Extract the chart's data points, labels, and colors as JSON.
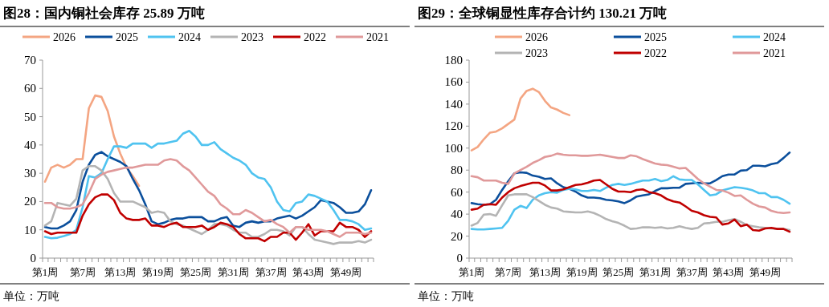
{
  "chart_data": [
    {
      "type": "line",
      "title": "图28：国内铜社会库存 25.89 万吨",
      "annotations": [
        "单位：万吨"
      ],
      "legend": "top",
      "grid": false,
      "ylim": [
        0,
        70
      ],
      "yticks": [
        0,
        10,
        20,
        30,
        40,
        50,
        60,
        70
      ],
      "categories": [
        "第1周",
        null,
        null,
        null,
        null,
        null,
        "第7周",
        null,
        null,
        null,
        null,
        null,
        "第13周",
        null,
        null,
        null,
        null,
        null,
        "第19周",
        null,
        null,
        null,
        null,
        null,
        "第25周",
        null,
        null,
        null,
        null,
        null,
        "第31周",
        null,
        null,
        null,
        null,
        null,
        "第37周",
        null,
        null,
        null,
        null,
        null,
        "第43周",
        null,
        null,
        null,
        null,
        null,
        "第49周",
        null,
        null,
        null,
        null
      ],
      "series": [
        {
          "name": "2026",
          "color": "#f4a582",
          "values": [
            27,
            32,
            33,
            32,
            33,
            35,
            35,
            53,
            57.5,
            57,
            52,
            43,
            37,
            32,
            29,
            25.5,
            null,
            null,
            null,
            null,
            null,
            null,
            null,
            null,
            null,
            null,
            null,
            null,
            null,
            null,
            null,
            null,
            null,
            null,
            null,
            null,
            null,
            null,
            null,
            null,
            null,
            null,
            null,
            null,
            null,
            null,
            null,
            null,
            null,
            null,
            null,
            null,
            null
          ]
        },
        {
          "name": "2025",
          "color": "#0b4f9c",
          "values": [
            11,
            10.5,
            10.5,
            11.5,
            13,
            17,
            27,
            33,
            36.5,
            37.5,
            36,
            35,
            34,
            32.5,
            28,
            24,
            19,
            13,
            12,
            12.5,
            13.5,
            14,
            14,
            14.5,
            14.5,
            14.5,
            13,
            13,
            14,
            14.5,
            11.5,
            11,
            12.5,
            13,
            12.5,
            13,
            13,
            14,
            14.5,
            15,
            14,
            15,
            16.5,
            18,
            20.5,
            20,
            19.5,
            18,
            16,
            16,
            16.5,
            19,
            24
          ]
        },
        {
          "name": "2024",
          "color": "#4fc3f0",
          "values": [
            7.5,
            7,
            7.2,
            7.8,
            8.5,
            10,
            18,
            29,
            28.5,
            30,
            35,
            39.5,
            39.5,
            39,
            40.5,
            40.5,
            40.5,
            39,
            40.5,
            40.5,
            41,
            41.5,
            44,
            45,
            43,
            40,
            40,
            41,
            38.5,
            37,
            35.5,
            34.5,
            33,
            30,
            28.5,
            28,
            25,
            20,
            17,
            16.5,
            19.5,
            20,
            22.5,
            22,
            21,
            20,
            17,
            13.5,
            13.5,
            13,
            12,
            10,
            10.5
          ]
        },
        {
          "name": "2023",
          "color": "#b4b4b4",
          "values": [
            11.5,
            13,
            19.5,
            19,
            18.5,
            21,
            31,
            32.5,
            32.5,
            31,
            28,
            23,
            20,
            20,
            20,
            19,
            18,
            16,
            16.5,
            16,
            13,
            12,
            11.5,
            10.5,
            9.5,
            8.5,
            10,
            12,
            12,
            11.5,
            10,
            9,
            9,
            7.5,
            7.5,
            8.5,
            10,
            10,
            9.5,
            8,
            11,
            11,
            8.5,
            6.5,
            6,
            5.5,
            5,
            5.5,
            5.5,
            5.5,
            6,
            5.5,
            6.5
          ]
        },
        {
          "name": "2022",
          "color": "#c00000",
          "values": [
            9.5,
            8.5,
            9,
            9,
            9,
            9,
            15,
            19,
            21.5,
            22.5,
            22.5,
            20.5,
            16,
            14,
            13.5,
            13.5,
            14,
            11.5,
            11.5,
            11,
            12,
            12.5,
            11,
            11,
            11,
            11.5,
            10,
            11,
            12.5,
            12,
            11,
            8.5,
            7,
            7,
            7,
            6,
            7.5,
            7.5,
            9,
            9,
            6.5,
            9,
            12,
            8,
            9.5,
            9.5,
            9.5,
            12.5,
            11,
            11,
            10,
            7.5,
            9.5
          ]
        },
        {
          "name": "2021",
          "color": "#e0999a",
          "values": [
            19.5,
            19.5,
            18,
            17.5,
            17.5,
            18,
            19,
            23,
            28,
            29.5,
            30.5,
            31,
            31.5,
            32,
            32,
            32.5,
            33,
            33,
            33,
            34.5,
            35,
            34.5,
            32.5,
            31,
            28.5,
            26,
            23.5,
            22,
            19,
            17.5,
            15.5,
            15.5,
            17,
            16,
            14.5,
            13,
            13.5,
            12,
            11,
            9,
            11,
            11,
            10,
            10,
            10,
            9.5,
            8.5,
            7.5,
            9,
            9,
            9,
            8.5,
            9
          ]
        }
      ]
    },
    {
      "type": "line",
      "title": "图29：全球铜显性库存合计约 130.21 万吨",
      "annotations": [
        "单位：万吨"
      ],
      "legend": "top",
      "grid": false,
      "ylim": [
        0,
        180
      ],
      "yticks": [
        0,
        20,
        40,
        60,
        80,
        100,
        120,
        140,
        160,
        180
      ],
      "categories": [
        "第1周",
        null,
        null,
        null,
        null,
        null,
        "第7周",
        null,
        null,
        null,
        null,
        null,
        "第13周",
        null,
        null,
        null,
        null,
        null,
        "第19周",
        null,
        null,
        null,
        null,
        null,
        "第25周",
        null,
        null,
        null,
        null,
        null,
        "第31周",
        null,
        null,
        null,
        null,
        null,
        "第37周",
        null,
        null,
        null,
        null,
        null,
        "第43周",
        null,
        null,
        null,
        null,
        null,
        "第49周",
        null,
        null,
        null,
        null
      ],
      "series": [
        {
          "name": "2026",
          "color": "#f4a582",
          "values": [
            98,
            101,
            108,
            114,
            115,
            118,
            122,
            126,
            145,
            152,
            154,
            151,
            143,
            137,
            135,
            132,
            130,
            null,
            null,
            null,
            null,
            null,
            null,
            null,
            null,
            null,
            null,
            null,
            null,
            null,
            null,
            null,
            null,
            null,
            null,
            null,
            null,
            null,
            null,
            null,
            null,
            null,
            null,
            null,
            null,
            null,
            null,
            null,
            null,
            null,
            null,
            null,
            null
          ]
        },
        {
          "name": "2025",
          "color": "#0b4f9c",
          "values": [
            50,
            49,
            48.5,
            49,
            53,
            62,
            70,
            77,
            78,
            77.5,
            75,
            74,
            72,
            72.5,
            68,
            64.5,
            63,
            60.5,
            57,
            55,
            55,
            54.5,
            53,
            52.5,
            51.5,
            50,
            52.5,
            56,
            57,
            58,
            61,
            63.5,
            63.5,
            64,
            64,
            67.5,
            68,
            68.5,
            68,
            68,
            71,
            74.5,
            76,
            76,
            79.5,
            80,
            84,
            84,
            83.5,
            85.5,
            86.5,
            91,
            96
          ]
        },
        {
          "name": "2024",
          "color": "#4fc3f0",
          "values": [
            26.5,
            26,
            26,
            26.5,
            27,
            27.5,
            34,
            44,
            47.5,
            45.5,
            53,
            57,
            59,
            60,
            59.5,
            62,
            63,
            62.5,
            61,
            61,
            62,
            61,
            64,
            66.5,
            67.5,
            66.5,
            67.5,
            69,
            70.5,
            70.5,
            72,
            70,
            71,
            74.5,
            71.5,
            71,
            71,
            67,
            62,
            57,
            58,
            61.5,
            63,
            64.5,
            64,
            63,
            61.5,
            59,
            59,
            55.5,
            55.5,
            53,
            49.5
          ]
        },
        {
          "name": "2023",
          "color": "#b4b4b4",
          "values": [
            29.5,
            32,
            39.5,
            40,
            38.5,
            48,
            57,
            58,
            58,
            58,
            55.5,
            52,
            48.5,
            46,
            45,
            42.5,
            42,
            41.5,
            41.5,
            42.5,
            41,
            38.5,
            35.5,
            33.5,
            32,
            29.5,
            26.5,
            27,
            28,
            28,
            27.5,
            28,
            27,
            27.5,
            29,
            27.5,
            26.5,
            27.5,
            31.5,
            32,
            33,
            33,
            34.5,
            35.5,
            33,
            30,
            29,
            28,
            27.5,
            27,
            26.5,
            26.5,
            25.5
          ]
        },
        {
          "name": "2022",
          "color": "#c00000",
          "values": [
            44,
            45,
            48.5,
            49,
            48.5,
            55,
            60,
            63.5,
            65.5,
            67,
            68.5,
            68.5,
            66,
            61.5,
            61.5,
            62.5,
            64.5,
            66.5,
            67,
            68.5,
            70.5,
            71,
            67,
            63,
            60.5,
            60.5,
            60,
            62,
            62.5,
            60,
            59,
            57,
            53.5,
            51.5,
            50.5,
            47,
            43,
            41.5,
            39,
            37.5,
            37,
            30.5,
            31.5,
            35,
            29,
            30.5,
            25.5,
            25,
            27,
            27.5,
            26.5,
            26.5,
            24
          ]
        },
        {
          "name": "2021",
          "color": "#e0999a",
          "values": [
            74.5,
            73.5,
            70.5,
            70.5,
            70.5,
            68.5,
            67.5,
            77,
            80,
            83,
            86.5,
            89,
            92,
            93,
            95,
            94,
            93.5,
            93.5,
            93,
            93,
            93.5,
            94,
            93,
            92,
            91,
            91,
            93.5,
            92.5,
            90,
            88,
            86,
            85,
            84.5,
            83,
            81.5,
            82,
            77,
            72,
            68,
            65,
            62,
            61.5,
            59.5,
            56.5,
            57,
            53,
            49.5,
            47,
            46,
            43,
            41.5,
            41,
            41.5
          ]
        }
      ]
    }
  ]
}
